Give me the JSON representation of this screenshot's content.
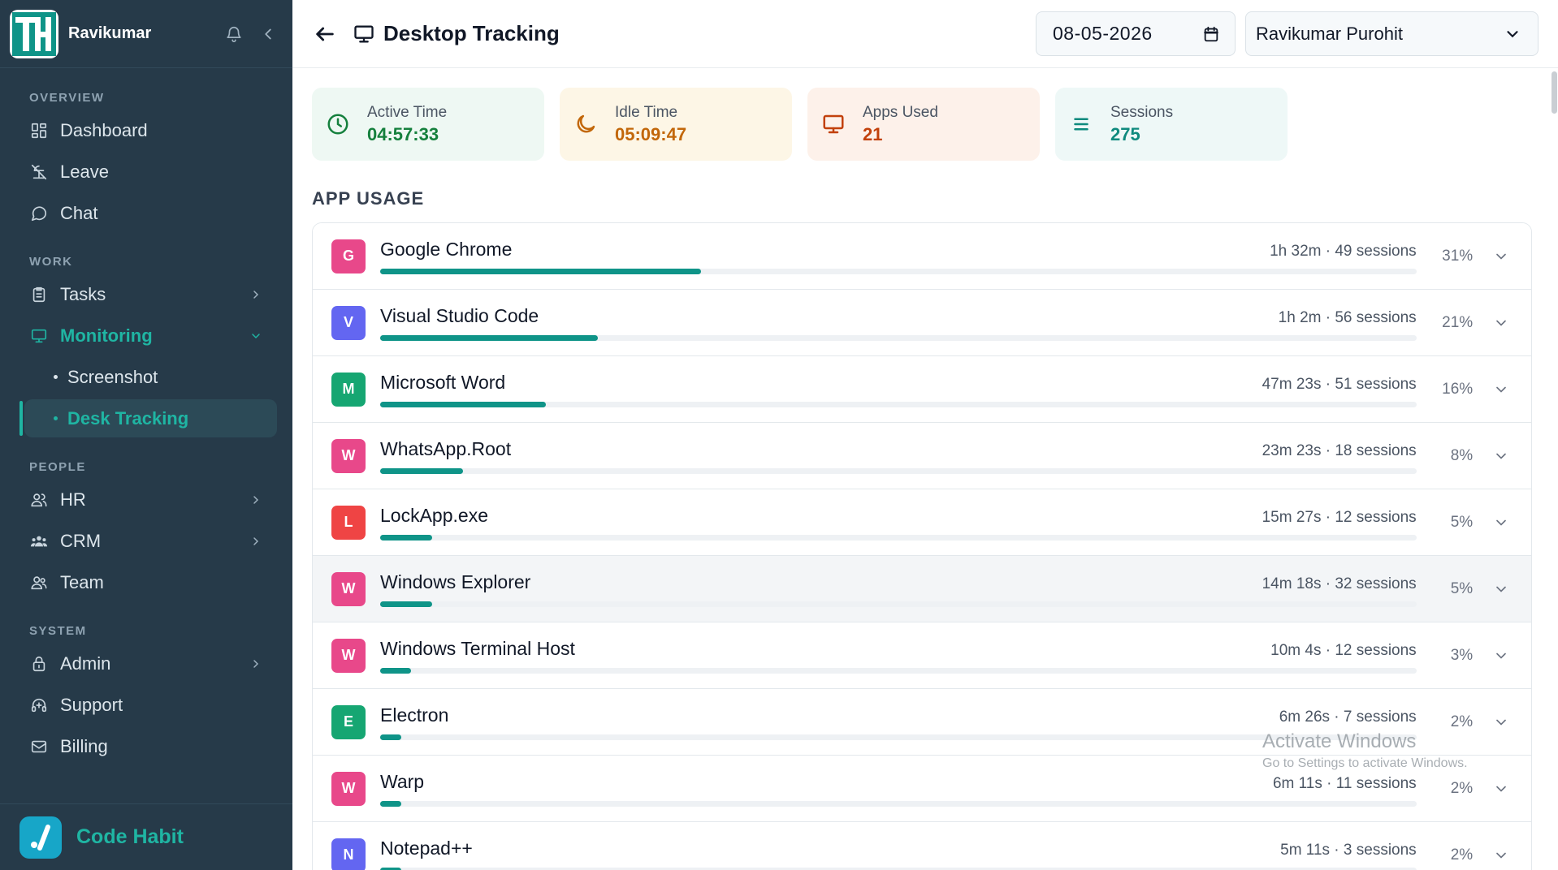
{
  "sidebar": {
    "brand_name": "Ravikumar",
    "sections": [
      {
        "label": "OVERVIEW",
        "items": [
          {
            "label": "Dashboard",
            "icon": "dashboard-icon"
          },
          {
            "label": "Leave",
            "icon": "leave-icon"
          },
          {
            "label": "Chat",
            "icon": "chat-icon"
          }
        ]
      },
      {
        "label": "WORK",
        "items": [
          {
            "label": "Tasks",
            "icon": "tasks-icon"
          },
          {
            "label": "Monitoring",
            "icon": "monitor-icon"
          },
          {
            "label": "Screenshot"
          },
          {
            "label": "Desk Tracking"
          }
        ]
      },
      {
        "label": "PEOPLE",
        "items": [
          {
            "label": "HR",
            "icon": "users-icon"
          },
          {
            "label": "CRM",
            "icon": "crm-icon"
          },
          {
            "label": "Team",
            "icon": "team-icon"
          }
        ]
      },
      {
        "label": "SYSTEM",
        "items": [
          {
            "label": "Admin",
            "icon": "lock-icon"
          },
          {
            "label": "Support",
            "icon": "support-icon"
          },
          {
            "label": "Billing",
            "icon": "billing-icon"
          }
        ]
      }
    ],
    "footer_name": "Code Habit"
  },
  "header": {
    "title": "Desktop Tracking",
    "date": "08-05-2026",
    "user": "Ravikumar Purohit"
  },
  "stats": [
    {
      "label": "Active Time",
      "value": "04:57:33",
      "icon": "clock-icon",
      "color": "#15803d"
    },
    {
      "label": "Idle Time",
      "value": "05:09:47",
      "icon": "moon-icon",
      "color": "#c2670a"
    },
    {
      "label": "Apps Used",
      "value": "21",
      "icon": "monitor-icon",
      "color": "#c2410c"
    },
    {
      "label": "Sessions",
      "value": "275",
      "icon": "list-icon",
      "color": "#0f8a7e"
    }
  ],
  "app_usage": {
    "title": "APP USAGE",
    "apps": [
      {
        "letter": "G",
        "name": "Google Chrome",
        "meta": "1h 32m · 49 sessions",
        "pct": "31%",
        "share": 31,
        "color": "#e8488a"
      },
      {
        "letter": "V",
        "name": "Visual Studio Code",
        "meta": "1h 2m · 56 sessions",
        "pct": "21%",
        "share": 21,
        "color": "#6366f1"
      },
      {
        "letter": "M",
        "name": "Microsoft Word",
        "meta": "47m 23s · 51 sessions",
        "pct": "16%",
        "share": 16,
        "color": "#16a672"
      },
      {
        "letter": "W",
        "name": "WhatsApp.Root",
        "meta": "23m 23s · 18 sessions",
        "pct": "8%",
        "share": 8,
        "color": "#e8488a"
      },
      {
        "letter": "L",
        "name": "LockApp.exe",
        "meta": "15m 27s · 12 sessions",
        "pct": "5%",
        "share": 5,
        "color": "#ef4444"
      },
      {
        "letter": "W",
        "name": "Windows Explorer",
        "meta": "14m 18s · 32 sessions",
        "pct": "5%",
        "share": 5,
        "color": "#e8488a"
      },
      {
        "letter": "W",
        "name": "Windows Terminal Host",
        "meta": "10m 4s · 12 sessions",
        "pct": "3%",
        "share": 3,
        "color": "#e8488a"
      },
      {
        "letter": "E",
        "name": "Electron",
        "meta": "6m 26s · 7 sessions",
        "pct": "2%",
        "share": 2,
        "color": "#16a672"
      },
      {
        "letter": "W",
        "name": "Warp",
        "meta": "6m 11s · 11 sessions",
        "pct": "2%",
        "share": 2,
        "color": "#e8488a"
      },
      {
        "letter": "N",
        "name": "Notepad++",
        "meta": "5m 11s · 3 sessions",
        "pct": "2%",
        "share": 2,
        "color": "#6366f1"
      }
    ]
  },
  "watermark": {
    "line1": "Activate Windows",
    "line2": "Go to Settings to activate Windows."
  }
}
